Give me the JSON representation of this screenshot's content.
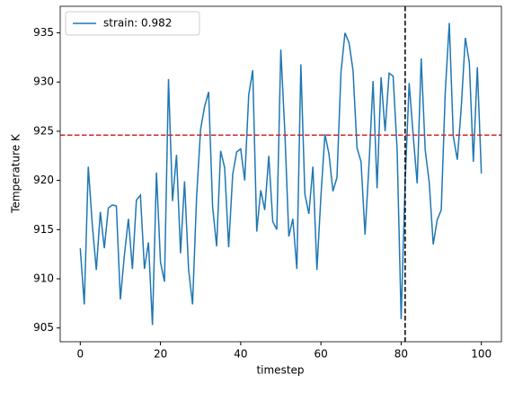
{
  "chart_data": {
    "type": "line",
    "xlabel": "timestep",
    "ylabel": "Temperature K",
    "x": [
      0,
      1,
      2,
      3,
      4,
      5,
      6,
      7,
      8,
      9,
      10,
      11,
      12,
      13,
      14,
      15,
      16,
      17,
      18,
      19,
      20,
      21,
      22,
      23,
      24,
      25,
      26,
      27,
      28,
      29,
      30,
      31,
      32,
      33,
      34,
      35,
      36,
      37,
      38,
      39,
      40,
      41,
      42,
      43,
      44,
      45,
      46,
      47,
      48,
      49,
      50,
      51,
      52,
      53,
      54,
      55,
      56,
      57,
      58,
      59,
      60,
      61,
      62,
      63,
      64,
      65,
      66,
      67,
      68,
      69,
      70,
      71,
      72,
      73,
      74,
      75,
      76,
      77,
      78,
      79,
      80,
      81,
      82,
      83,
      84,
      85,
      86,
      87,
      88,
      89,
      90,
      91,
      92,
      93,
      94,
      95,
      96,
      97,
      98,
      99,
      100
    ],
    "series": [
      {
        "name": "strain: 0.982",
        "color": "#1f77b4",
        "values": [
          913.1,
          907.4,
          921.4,
          915.5,
          910.9,
          916.8,
          913.1,
          917.2,
          917.5,
          917.4,
          907.9,
          912.4,
          916.1,
          911.0,
          918.0,
          918.5,
          911.0,
          913.7,
          905.3,
          920.8,
          911.7,
          909.7,
          930.3,
          917.9,
          922.6,
          912.6,
          919.9,
          911.0,
          907.4,
          918.3,
          925.2,
          927.5,
          929.0,
          917.3,
          913.3,
          923.0,
          921.3,
          913.2,
          920.6,
          922.9,
          923.2,
          920.0,
          928.7,
          931.2,
          914.8,
          919.0,
          917.0,
          922.5,
          915.8,
          915.0,
          933.3,
          925.0,
          914.3,
          916.1,
          911.0,
          931.8,
          918.6,
          916.6,
          921.4,
          910.9,
          918.4,
          924.7,
          922.7,
          918.9,
          920.3,
          931.0,
          935.0,
          934.0,
          931.2,
          923.3,
          921.9,
          914.5,
          921.7,
          930.1,
          919.2,
          930.5,
          925.0,
          930.9,
          930.6,
          923.1,
          905.9,
          919.9,
          929.9,
          924.6,
          919.7,
          932.4,
          923.1,
          919.8,
          913.5,
          916.0,
          917.0,
          929.0,
          936.0,
          924.5,
          922.1,
          927.5,
          934.5,
          932.0,
          921.9,
          931.5,
          920.7
        ]
      }
    ],
    "hline": {
      "value": 924.6,
      "color": "#d62728"
    },
    "vline": {
      "value": 81,
      "color": "#000000"
    },
    "xlim": [
      -5,
      105
    ],
    "xticks": [
      0,
      20,
      40,
      60,
      80,
      100
    ],
    "ylim": [
      903.6,
      937.7
    ],
    "yticks": [
      905,
      910,
      915,
      920,
      925,
      930,
      935
    ],
    "legend": "upper left",
    "grid": false
  }
}
